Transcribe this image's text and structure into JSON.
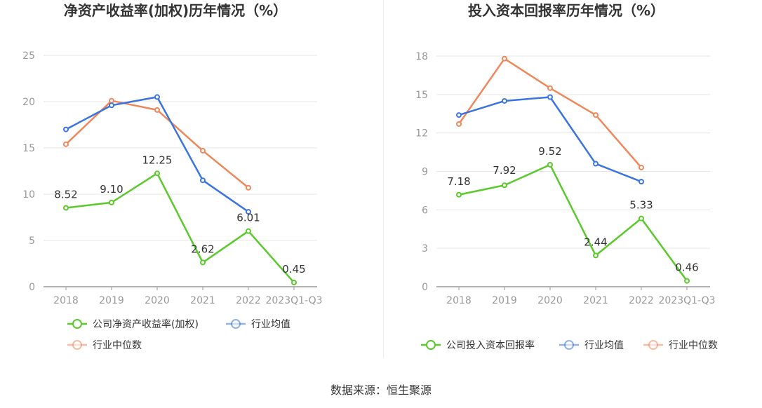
{
  "chart_data": [
    {
      "type": "line",
      "title": "净资产收益率(加权)历年情况（%）",
      "categories": [
        "2018",
        "2019",
        "2020",
        "2021",
        "2022",
        "2023Q1-Q3"
      ],
      "ylim": [
        0,
        25
      ],
      "yticks": [
        "0",
        "5",
        "10",
        "15",
        "20",
        "25"
      ],
      "series": [
        {
          "name": "公司净资产收益率(加权)",
          "color": "#5ac92b",
          "values": [
            8.52,
            9.1,
            12.25,
            2.62,
            6.01,
            0.45
          ],
          "labels": [
            "8.52",
            "9.10",
            "12.25",
            "2.62",
            "6.01",
            "0.45"
          ]
        },
        {
          "name": "行业均值",
          "color": "#3b74e0",
          "values": [
            17.0,
            19.6,
            20.5,
            11.5,
            8.1,
            null
          ]
        },
        {
          "name": "行业中位数",
          "color": "#f0875a",
          "values": [
            15.4,
            20.1,
            19.1,
            14.7,
            10.7,
            null
          ]
        }
      ],
      "legend": {
        "placement": "bottom",
        "rows": [
          [
            "公司净资产收益率(加权)",
            "行业均值"
          ],
          [
            "行业中位数"
          ]
        ]
      }
    },
    {
      "type": "line",
      "title": "投入资本回报率历年情况（%）",
      "categories": [
        "2018",
        "2019",
        "2020",
        "2021",
        "2022",
        "2023Q1-Q3"
      ],
      "ylim": [
        0,
        18
      ],
      "yticks": [
        "0",
        "3",
        "6",
        "9",
        "12",
        "15",
        "18"
      ],
      "series": [
        {
          "name": "公司投入资本回报率",
          "color": "#5ac92b",
          "values": [
            7.18,
            7.92,
            9.52,
            2.44,
            5.33,
            0.46
          ],
          "labels": [
            "7.18",
            "7.92",
            "9.52",
            "2.44",
            "5.33",
            "0.46"
          ]
        },
        {
          "name": "行业均值",
          "color": "#3b74e0",
          "values": [
            13.4,
            14.5,
            14.8,
            9.6,
            8.2,
            null
          ]
        },
        {
          "name": "行业中位数",
          "color": "#f0875a",
          "values": [
            12.7,
            17.8,
            15.5,
            13.4,
            9.3,
            null
          ]
        }
      ],
      "legend": {
        "placement": "bottom",
        "rows": [
          [
            "公司投入资本回报率",
            "行业均值",
            "行业中位数"
          ]
        ]
      }
    }
  ],
  "footer": {
    "source": "数据来源：恒生聚源"
  }
}
